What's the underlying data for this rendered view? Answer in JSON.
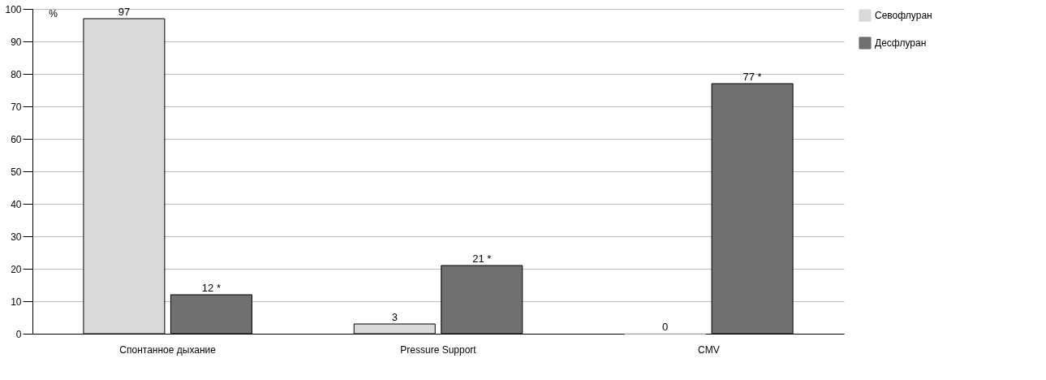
{
  "chart_data": {
    "type": "bar",
    "ylabel": "%",
    "categories": [
      "Спонтанное дыхание",
      "Pressure Support",
      "CMV"
    ],
    "series": [
      {
        "name": "Севофлуран",
        "color": "#d9d9d9",
        "values": [
          97,
          3,
          0
        ],
        "value_labels": [
          "97",
          "3",
          "0"
        ]
      },
      {
        "name": "Десфлуран",
        "color": "#707070",
        "values": [
          12,
          21,
          77
        ],
        "value_labels": [
          "12 *",
          "21 *",
          "77 *"
        ]
      }
    ],
    "ylim": [
      0,
      100
    ],
    "yticks": [
      0,
      10,
      20,
      30,
      40,
      50,
      60,
      70,
      80,
      90,
      100
    ],
    "grid": "y",
    "legend": "right"
  }
}
